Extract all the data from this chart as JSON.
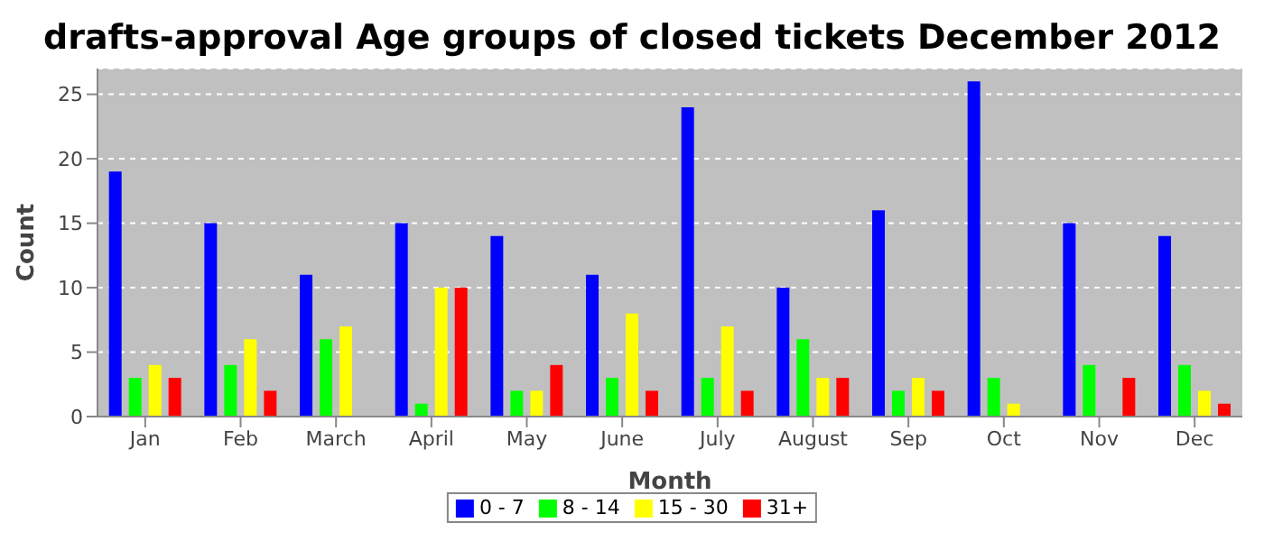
{
  "chart_data": {
    "type": "bar",
    "title": "drafts-approval Age groups of closed tickets December 2012",
    "xlabel": "Month",
    "ylabel": "Count",
    "categories": [
      "Jan",
      "Feb",
      "March",
      "April",
      "May",
      "June",
      "July",
      "August",
      "Sep",
      "Oct",
      "Nov",
      "Dec"
    ],
    "series": [
      {
        "name": "0 - 7",
        "color": "#0000ff",
        "values": [
          19,
          15,
          11,
          15,
          14,
          11,
          24,
          10,
          16,
          26,
          15,
          14
        ]
      },
      {
        "name": "8 - 14",
        "color": "#00ff00",
        "values": [
          3,
          4,
          6,
          1,
          2,
          3,
          3,
          6,
          2,
          3,
          4,
          4
        ]
      },
      {
        "name": "15 - 30",
        "color": "#ffff00",
        "values": [
          4,
          6,
          7,
          10,
          2,
          8,
          7,
          3,
          3,
          1,
          0,
          2
        ]
      },
      {
        "name": "31+",
        "color": "#ff0000",
        "values": [
          3,
          2,
          0,
          10,
          4,
          2,
          2,
          3,
          2,
          0,
          3,
          1
        ]
      }
    ],
    "ylim": [
      0,
      27
    ],
    "yticks": [
      0,
      5,
      10,
      15,
      20,
      25
    ],
    "grid": "y",
    "legend": "bottom"
  }
}
